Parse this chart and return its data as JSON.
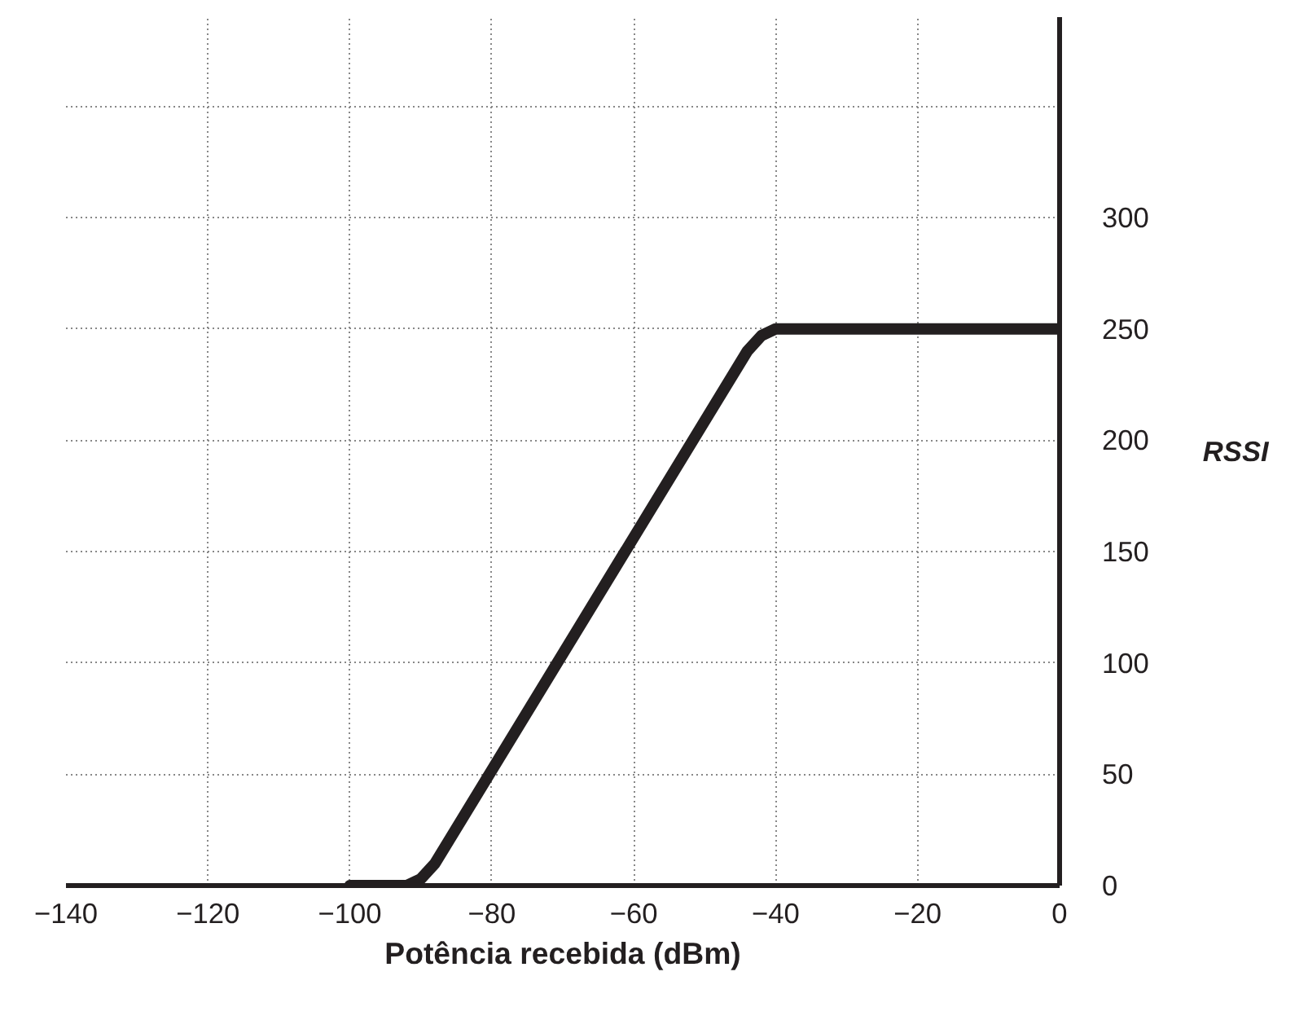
{
  "chart_data": {
    "type": "line",
    "xlabel": "Potência recebida (dBm)",
    "ylabel": "RSSI",
    "x": [
      -100,
      -92,
      -90,
      -88,
      -44,
      -42,
      -40,
      0
    ],
    "series": [
      {
        "color": "#231f20",
        "values": [
          0,
          0,
          3,
          10,
          240,
          247,
          250,
          250
        ]
      }
    ],
    "xlim": [
      -140,
      0
    ],
    "ylim": [
      0,
      390
    ],
    "xticks": [
      -140,
      -120,
      -100,
      -80,
      -60,
      -40,
      -20,
      0
    ],
    "yticks": [
      0,
      50,
      100,
      150,
      200,
      250,
      300,
      {
        "value": 350,
        "label": null
      }
    ],
    "grid": true,
    "marker": "none",
    "line_style": "solid"
  }
}
